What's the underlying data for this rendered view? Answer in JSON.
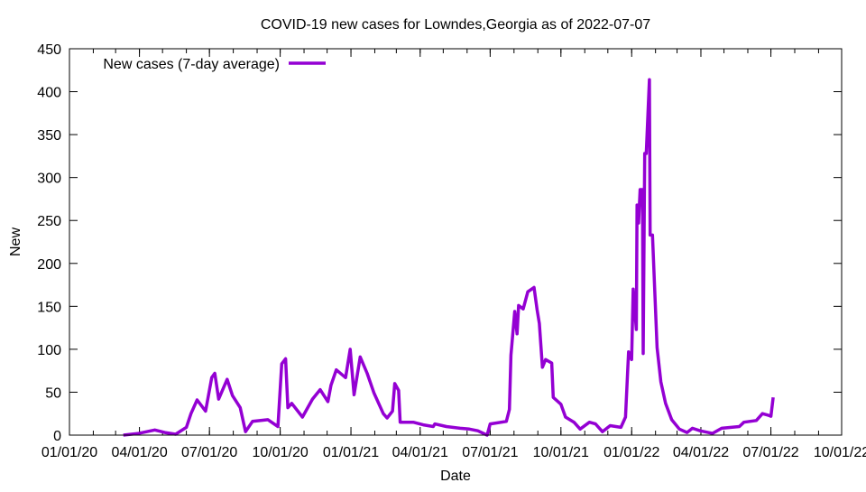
{
  "chart_data": {
    "type": "line",
    "title": "COVID-19 new cases for Lowndes,Georgia as of 2022-07-07",
    "xlabel": "Date",
    "ylabel": "New",
    "x_origin": "2020-01-01",
    "x_unit": "days since x_origin",
    "xlim": [
      0,
      1004
    ],
    "ylim": [
      0,
      450
    ],
    "yticks": [
      0,
      50,
      100,
      150,
      200,
      250,
      300,
      350,
      400,
      450
    ],
    "xticks": [
      {
        "day": 0,
        "label": "01/01/20"
      },
      {
        "day": 91,
        "label": "04/01/20"
      },
      {
        "day": 182,
        "label": "07/01/20"
      },
      {
        "day": 274,
        "label": "10/01/20"
      },
      {
        "day": 366,
        "label": "01/01/21"
      },
      {
        "day": 456,
        "label": "04/01/21"
      },
      {
        "day": 547,
        "label": "07/01/21"
      },
      {
        "day": 639,
        "label": "10/01/21"
      },
      {
        "day": 731,
        "label": "01/01/22"
      },
      {
        "day": 821,
        "label": "04/01/22"
      },
      {
        "day": 912,
        "label": "07/01/22"
      },
      {
        "day": 1004,
        "label": "10/01/22"
      }
    ],
    "grid": false,
    "legend_position": "top-left",
    "series": [
      {
        "name": "New cases (7-day average)",
        "color": "#9400d3",
        "x": [
          70,
          90,
          111,
          124,
          138,
          152,
          158,
          166,
          177,
          185,
          189,
          194,
          205,
          212,
          222,
          229,
          238,
          258,
          271,
          276,
          281,
          284,
          289,
          303,
          316,
          326,
          336,
          340,
          347,
          359,
          365,
          370,
          378,
          387,
          396,
          408,
          413,
          420,
          423,
          428,
          430,
          447,
          460,
          473,
          475,
          490,
          508,
          520,
          531,
          543,
          547,
          568,
          572,
          574,
          579,
          582,
          584,
          590,
          596,
          604,
          608,
          611,
          615,
          619,
          627,
          629,
          639,
          645,
          656,
          664,
          676,
          684,
          693,
          703,
          717,
          723,
          727,
          731,
          733,
          737,
          738,
          740,
          742,
          745,
          746,
          748,
          750,
          754,
          755,
          758,
          764,
          769,
          775,
          783,
          793,
          803,
          810,
          820,
          836,
          848,
          871,
          877,
          893,
          901,
          909,
          912,
          915
        ],
        "y": [
          0,
          2,
          6,
          3,
          1,
          9,
          25,
          41,
          28,
          67,
          72,
          42,
          65,
          46,
          32,
          4,
          16,
          18,
          10,
          83,
          89,
          32,
          37,
          21,
          42,
          53,
          39,
          58,
          76,
          67,
          100,
          47,
          91,
          72,
          49,
          25,
          20,
          28,
          60,
          52,
          15,
          15,
          12,
          10,
          13,
          10,
          8,
          7,
          5,
          0,
          13,
          16,
          30,
          93,
          144,
          118,
          151,
          147,
          167,
          172,
          146,
          130,
          79,
          88,
          84,
          44,
          36,
          21,
          15,
          7,
          15,
          13,
          4,
          11,
          9,
          21,
          97,
          88,
          170,
          123,
          268,
          247,
          286,
          286,
          95,
          328,
          328,
          414,
          233,
          233,
          102,
          62,
          37,
          18,
          7,
          3,
          8,
          5,
          2,
          8,
          10,
          15,
          17,
          25,
          23,
          22,
          44
        ]
      }
    ]
  }
}
